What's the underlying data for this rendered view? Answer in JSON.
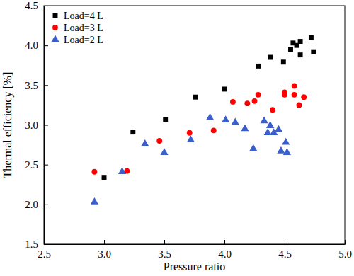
{
  "chart_data": {
    "type": "scatter",
    "x_label": "Pressure ratio",
    "y_label": "Thermal efficiency [%]",
    "xlim": [
      2.5,
      5.0
    ],
    "ylim": [
      1.5,
      4.5
    ],
    "xticks": [
      2.5,
      {
        "value": 3,
        "label": "3.0"
      },
      3.5,
      {
        "value": 4,
        "label": "4.0"
      },
      4.5,
      {
        "value": 5,
        "label": "5.0"
      }
    ],
    "yticks": [
      1.5,
      {
        "value": 2,
        "label": "2.0"
      },
      2.5,
      {
        "value": 3,
        "label": "3.0"
      },
      3.5,
      {
        "value": 4,
        "label": "4.0"
      },
      4.5
    ],
    "grid": false,
    "legend": "upper left",
    "series": [
      {
        "name": "Load=4 L",
        "color": "#000000",
        "marker": "square",
        "x": [
          3.0,
          3.24,
          3.51,
          3.76,
          4.0,
          4.28,
          4.38,
          4.49,
          4.55,
          4.57,
          4.6,
          4.63,
          4.63,
          4.72,
          4.74
        ],
        "values": [
          2.34,
          2.91,
          3.07,
          3.35,
          3.45,
          3.74,
          3.85,
          3.79,
          3.95,
          4.03,
          4.0,
          4.05,
          3.88,
          4.1,
          3.92
        ]
      },
      {
        "name": "Load=3 L",
        "color": "#ff0000",
        "marker": "circle",
        "x": [
          2.92,
          3.19,
          3.46,
          3.71,
          3.91,
          4.07,
          4.19,
          4.25,
          4.28,
          4.4,
          4.5,
          4.5,
          4.58,
          4.58,
          4.62,
          4.66
        ],
        "values": [
          2.41,
          2.42,
          2.8,
          2.9,
          2.93,
          3.29,
          3.27,
          3.3,
          3.38,
          3.19,
          3.41,
          3.38,
          3.49,
          3.38,
          3.25,
          3.35
        ]
      },
      {
        "name": "Load=2 L",
        "color": "#3a5fcd",
        "marker": "triangle",
        "x": [
          2.92,
          3.15,
          3.34,
          3.5,
          3.72,
          3.88,
          4.01,
          4.09,
          4.17,
          4.24,
          4.33,
          4.36,
          4.38,
          4.41,
          4.45,
          4.47,
          4.51,
          4.52
        ],
        "values": [
          2.03,
          2.41,
          2.76,
          2.65,
          2.81,
          3.09,
          3.06,
          3.03,
          2.95,
          2.7,
          3.05,
          2.9,
          2.99,
          2.9,
          2.94,
          2.67,
          2.78,
          2.65
        ]
      }
    ]
  }
}
